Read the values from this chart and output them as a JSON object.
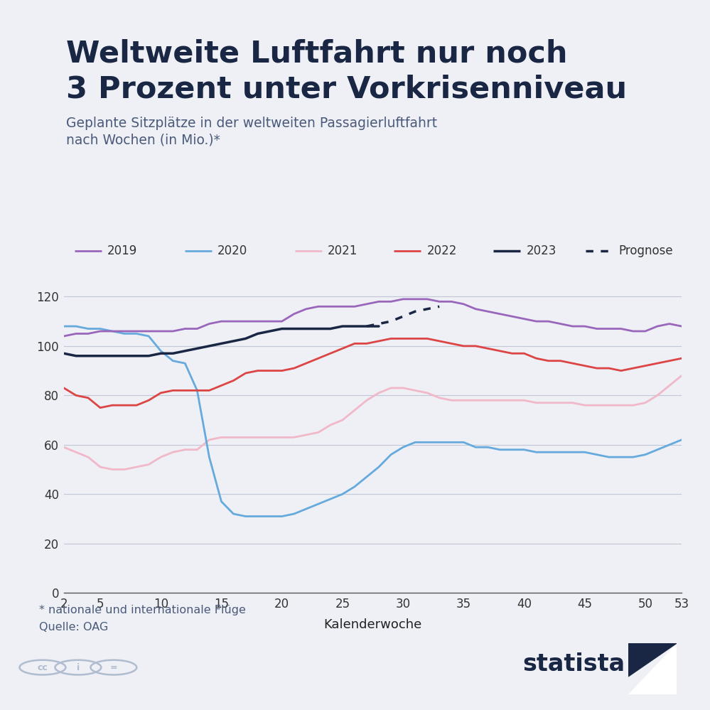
{
  "title_line1": "Weltweite Luftfahrt nur noch",
  "title_line2": "3 Prozent unter Vorkrisenniveau",
  "subtitle_line1": "Geplante Sitzplätze in der weltweiten Passagierluftfahrt",
  "subtitle_line2": "nach Wochen (in Mio.)*",
  "footnote1": "* nationale und internationale Flüge",
  "footnote2": "Quelle: OAG",
  "xlabel": "Kalenderwoche",
  "background_color": "#eef0f5",
  "title_color": "#1a2744",
  "subtitle_color": "#4a5a7a",
  "footnote_color": "#4a5a7a",
  "red_accent": "#cc1111",
  "statista_color": "#1a2744",
  "legend_items": [
    {
      "label": "2019",
      "color": "#9966bb",
      "linestyle": "solid",
      "linewidth": 2.0
    },
    {
      "label": "2020",
      "color": "#66aadd",
      "linestyle": "solid",
      "linewidth": 2.0
    },
    {
      "label": "2021",
      "color": "#f0b8c8",
      "linestyle": "solid",
      "linewidth": 2.0
    },
    {
      "label": "2022",
      "color": "#dd4444",
      "linestyle": "solid",
      "linewidth": 2.0
    },
    {
      "label": "2023",
      "color": "#1a2744",
      "linestyle": "solid",
      "linewidth": 2.5
    },
    {
      "label": "Prognose",
      "color": "#1a2744",
      "linestyle": "dotted",
      "linewidth": 2.5
    }
  ],
  "series": {
    "2019": {
      "color": "#9966bb",
      "linewidth": 2.0,
      "linestyle": "solid",
      "x": [
        2,
        3,
        4,
        5,
        6,
        7,
        8,
        9,
        10,
        11,
        12,
        13,
        14,
        15,
        16,
        17,
        18,
        19,
        20,
        21,
        22,
        23,
        24,
        25,
        26,
        27,
        28,
        29,
        30,
        31,
        32,
        33,
        34,
        35,
        36,
        37,
        38,
        39,
        40,
        41,
        42,
        43,
        44,
        45,
        46,
        47,
        48,
        49,
        50,
        51,
        52,
        53
      ],
      "y": [
        104,
        105,
        105,
        106,
        106,
        106,
        106,
        106,
        106,
        106,
        107,
        107,
        109,
        110,
        110,
        110,
        110,
        110,
        110,
        113,
        115,
        116,
        116,
        116,
        116,
        117,
        118,
        118,
        119,
        119,
        119,
        118,
        118,
        117,
        115,
        114,
        113,
        112,
        111,
        110,
        110,
        109,
        108,
        108,
        107,
        107,
        107,
        106,
        106,
        108,
        109,
        108
      ]
    },
    "2020": {
      "color": "#66aadd",
      "linewidth": 2.0,
      "linestyle": "solid",
      "x": [
        2,
        3,
        4,
        5,
        6,
        7,
        8,
        9,
        10,
        11,
        12,
        13,
        14,
        15,
        16,
        17,
        18,
        19,
        20,
        21,
        22,
        23,
        24,
        25,
        26,
        27,
        28,
        29,
        30,
        31,
        32,
        33,
        34,
        35,
        36,
        37,
        38,
        39,
        40,
        41,
        42,
        43,
        44,
        45,
        46,
        47,
        48,
        49,
        50,
        51,
        52,
        53
      ],
      "y": [
        108,
        108,
        107,
        107,
        106,
        105,
        105,
        104,
        98,
        94,
        93,
        82,
        55,
        37,
        32,
        31,
        31,
        31,
        31,
        32,
        34,
        36,
        38,
        40,
        43,
        47,
        51,
        56,
        59,
        61,
        61,
        61,
        61,
        61,
        59,
        59,
        58,
        58,
        58,
        57,
        57,
        57,
        57,
        57,
        56,
        55,
        55,
        55,
        56,
        58,
        60,
        62
      ]
    },
    "2021": {
      "color": "#f0b8c8",
      "linewidth": 2.0,
      "linestyle": "solid",
      "x": [
        2,
        3,
        4,
        5,
        6,
        7,
        8,
        9,
        10,
        11,
        12,
        13,
        14,
        15,
        16,
        17,
        18,
        19,
        20,
        21,
        22,
        23,
        24,
        25,
        26,
        27,
        28,
        29,
        30,
        31,
        32,
        33,
        34,
        35,
        36,
        37,
        38,
        39,
        40,
        41,
        42,
        43,
        44,
        45,
        46,
        47,
        48,
        49,
        50,
        51,
        52,
        53
      ],
      "y": [
        59,
        57,
        55,
        51,
        50,
        50,
        51,
        52,
        55,
        57,
        58,
        58,
        62,
        63,
        63,
        63,
        63,
        63,
        63,
        63,
        64,
        65,
        68,
        70,
        74,
        78,
        81,
        83,
        83,
        82,
        81,
        79,
        78,
        78,
        78,
        78,
        78,
        78,
        78,
        77,
        77,
        77,
        77,
        76,
        76,
        76,
        76,
        76,
        77,
        80,
        84,
        88
      ]
    },
    "2022": {
      "color": "#dd4444",
      "linewidth": 2.0,
      "linestyle": "solid",
      "x": [
        2,
        3,
        4,
        5,
        6,
        7,
        8,
        9,
        10,
        11,
        12,
        13,
        14,
        15,
        16,
        17,
        18,
        19,
        20,
        21,
        22,
        23,
        24,
        25,
        26,
        27,
        28,
        29,
        30,
        31,
        32,
        33,
        34,
        35,
        36,
        37,
        38,
        39,
        40,
        41,
        42,
        43,
        44,
        45,
        46,
        47,
        48,
        49,
        50,
        51,
        52,
        53
      ],
      "y": [
        83,
        80,
        79,
        75,
        76,
        76,
        76,
        78,
        81,
        82,
        82,
        82,
        82,
        84,
        86,
        89,
        90,
        90,
        90,
        91,
        93,
        95,
        97,
        99,
        101,
        101,
        102,
        103,
        103,
        103,
        103,
        102,
        101,
        100,
        100,
        99,
        98,
        97,
        97,
        95,
        94,
        94,
        93,
        92,
        91,
        91,
        90,
        91,
        92,
        93,
        94,
        95
      ]
    },
    "2023": {
      "color": "#1a2744",
      "linewidth": 2.5,
      "linestyle": "solid",
      "x": [
        2,
        3,
        4,
        5,
        6,
        7,
        8,
        9,
        10,
        11,
        12,
        13,
        14,
        15,
        16,
        17,
        18,
        19,
        20,
        21,
        22,
        23,
        24,
        25,
        26,
        27,
        28
      ],
      "y": [
        97,
        96,
        96,
        96,
        96,
        96,
        96,
        96,
        97,
        97,
        98,
        99,
        100,
        101,
        102,
        103,
        105,
        106,
        107,
        107,
        107,
        107,
        107,
        108,
        108,
        108,
        108
      ]
    },
    "prognose": {
      "color": "#1a2744",
      "linewidth": 2.5,
      "linestyle": "dotted",
      "x": [
        27,
        28,
        29,
        30,
        31,
        32,
        33
      ],
      "y": [
        108,
        109,
        110,
        112,
        114,
        115,
        116
      ]
    }
  },
  "yticks": [
    0,
    20,
    40,
    60,
    80,
    100,
    120
  ],
  "xticks": [
    2,
    5,
    10,
    15,
    20,
    25,
    30,
    35,
    40,
    45,
    50,
    53
  ],
  "xlim": [
    2,
    53
  ],
  "ylim": [
    0,
    128
  ]
}
